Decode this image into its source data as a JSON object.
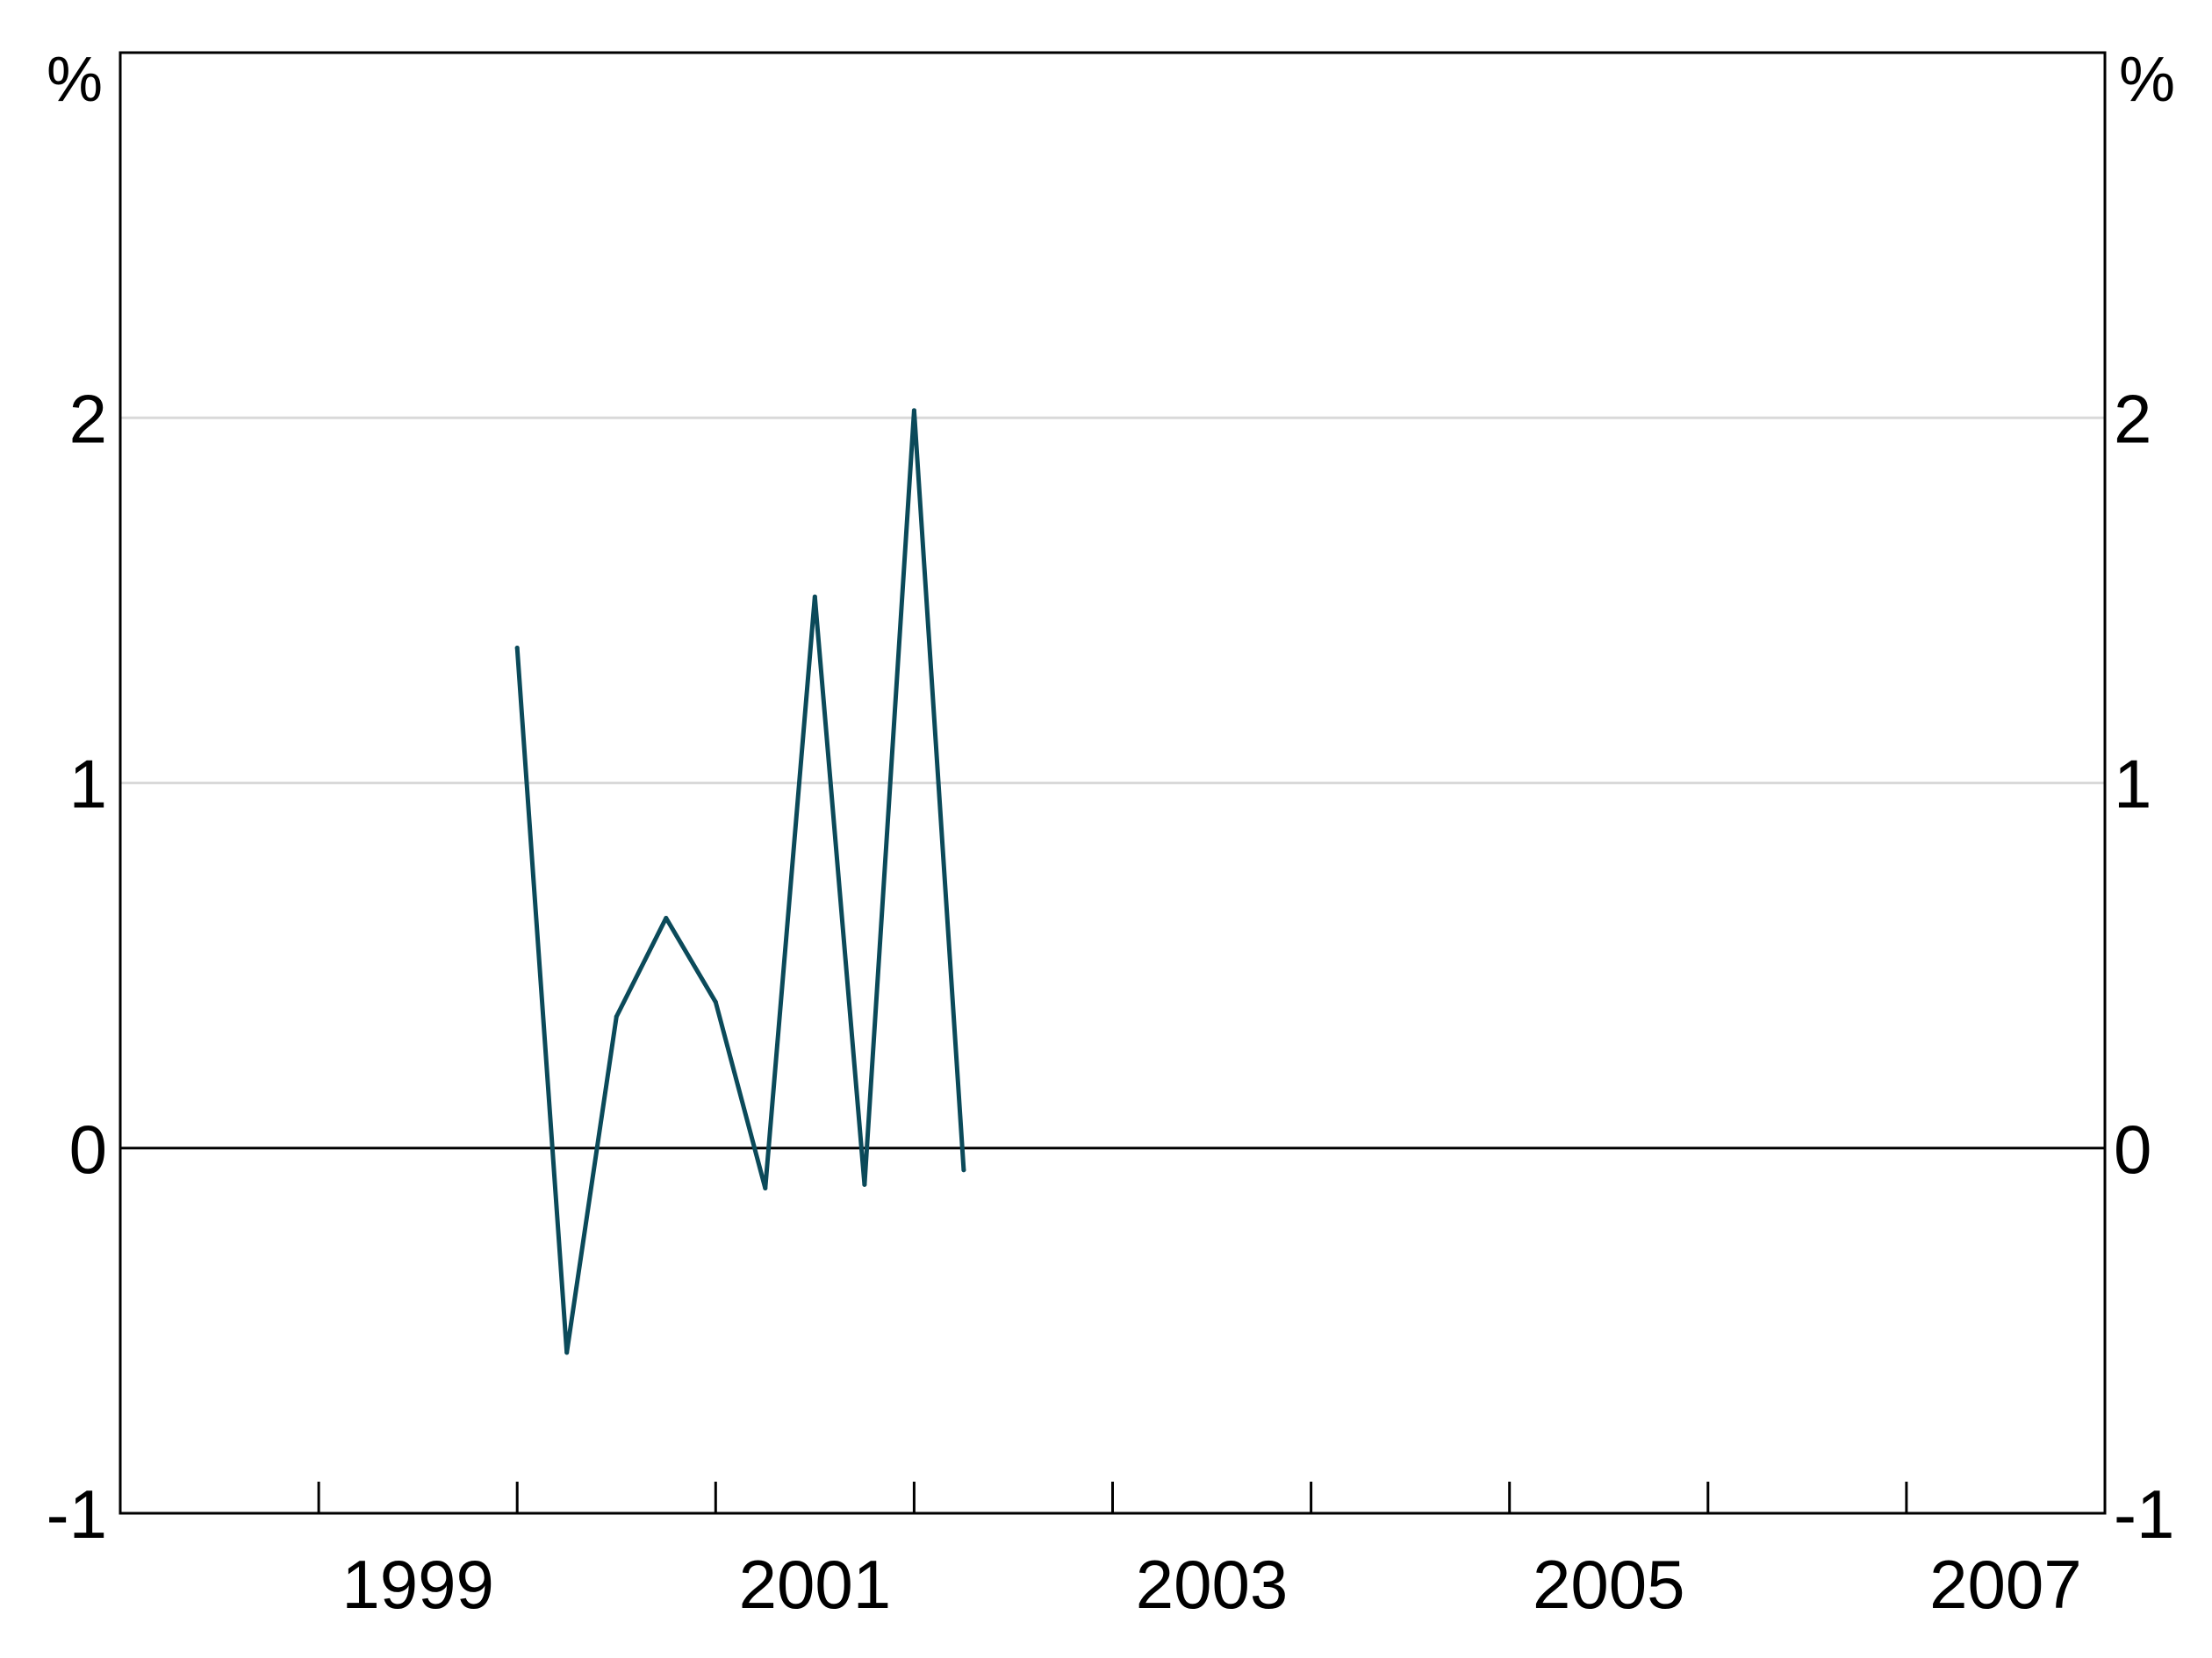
{
  "chart_data": {
    "type": "line",
    "title": "",
    "xlabel": "",
    "ylabel": "%",
    "y_unit_left": "%",
    "y_unit_right": "%",
    "ylim": [
      -1,
      3
    ],
    "y_ticks": [
      -1,
      0,
      1,
      2
    ],
    "y_tick_labels": [
      "-1",
      "0",
      "1",
      "2"
    ],
    "xlim": [
      "1997-12",
      "2007-12"
    ],
    "x_tick_labels": [
      "1999",
      "2001",
      "2003",
      "2005",
      "2007"
    ],
    "x_label_positions": [
      "1999-06",
      "2001-06",
      "2003-06",
      "2005-06",
      "2007-06"
    ],
    "x_minor_ticks": [
      "1998-12",
      "1999-12",
      "2000-12",
      "2001-12",
      "2002-12",
      "2003-12",
      "2004-12",
      "2005-12",
      "2006-12"
    ],
    "gridlines": [
      1,
      2
    ],
    "zero_line": true,
    "legend": "none",
    "colors": {
      "line": "#0b4a5a",
      "grid": "#d9d9d9",
      "axis": "#000000"
    },
    "series": [
      {
        "x": [
          "1999Q4",
          "2000Q1",
          "2000Q2",
          "2000Q3",
          "2000Q4",
          "2001Q1",
          "2001Q2",
          "2001Q3",
          "2001Q4",
          "2002Q1"
        ],
        "values": [
          1.37,
          -0.56,
          0.36,
          0.63,
          0.4,
          -0.11,
          1.51,
          -0.1,
          2.02,
          -0.06
        ]
      }
    ]
  }
}
